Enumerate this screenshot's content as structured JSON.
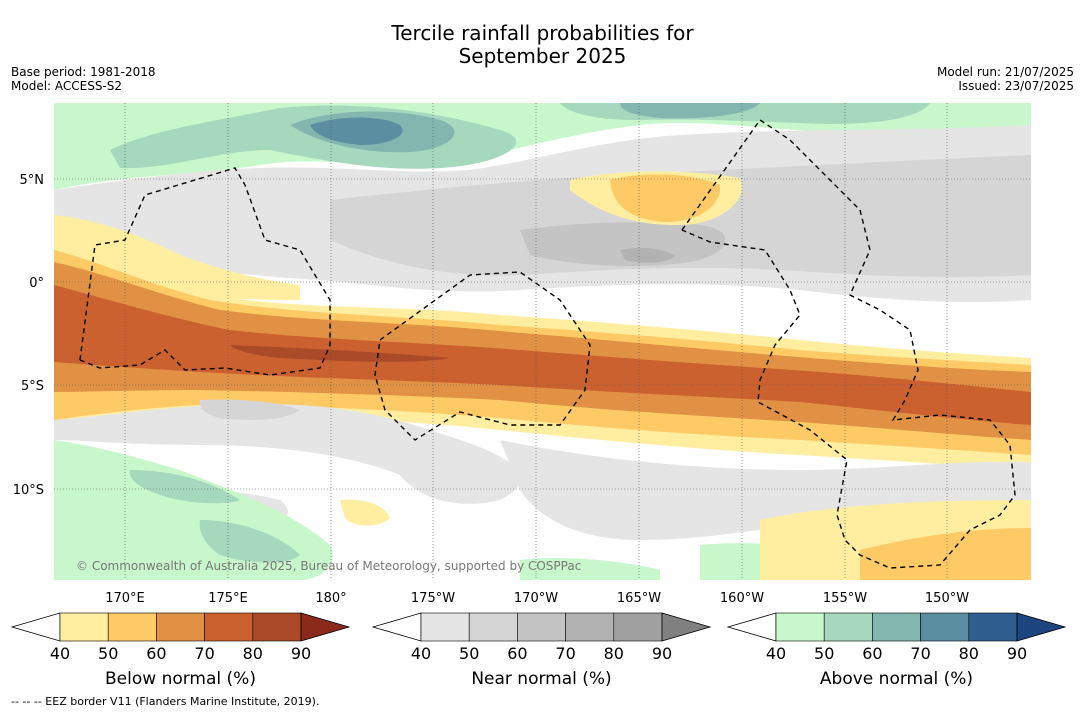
{
  "title_line1": "Tercile rainfall probabilities for",
  "title_line2": "September 2025",
  "meta": {
    "base_period": "Base period: 1981-2018",
    "model": "Model: ACCESS-S2",
    "model_run": "Model run: 21/07/2025",
    "issued": "Issued: 23/07/2025"
  },
  "map": {
    "copyright": "© Commonwealth of Australia 2025, Bureau of Meteorology, supported by COSPPac",
    "lat_labels": [
      "5°N",
      "0°",
      "5°S",
      "10°S"
    ],
    "lon_labels": [
      "170°E",
      "175°E",
      "180°",
      "175°W",
      "170°W",
      "165°W",
      "160°W",
      "155°W",
      "150°W"
    ]
  },
  "colorbars": [
    {
      "title": "Below normal (%)",
      "ticks": [
        "40",
        "50",
        "60",
        "70",
        "80",
        "90"
      ],
      "colors": [
        "#ffeda0",
        "#fdca66",
        "#e09144",
        "#cc6130",
        "#aa4a28",
        "#8b2a1a"
      ]
    },
    {
      "title": "Near normal (%)",
      "ticks": [
        "40",
        "50",
        "60",
        "70",
        "80",
        "90"
      ],
      "colors": [
        "#e5e5e5",
        "#d5d5d5",
        "#c4c4c4",
        "#b2b2b2",
        "#a0a0a0",
        "#808080"
      ]
    },
    {
      "title": "Above normal (%)",
      "ticks": [
        "40",
        "50",
        "60",
        "70",
        "80",
        "90"
      ],
      "colors": [
        "#c9f7cc",
        "#a5d8bd",
        "#82b6af",
        "#5c8ea2",
        "#2f5e8f",
        "#1d4580"
      ]
    }
  ],
  "footnote": "-- -- -- EEZ border V11 (Flanders Marine Institute, 2019)."
}
